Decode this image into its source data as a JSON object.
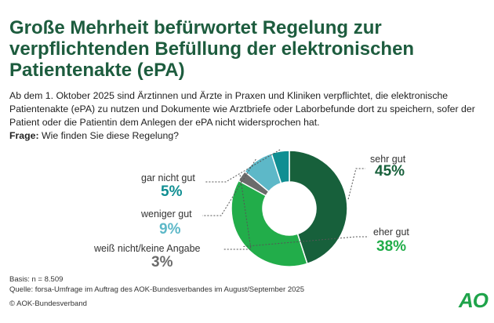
{
  "header": {
    "title": "Große Mehrheit befürwortet Regelung zur verpflichtenden Befüllung der elektronischen Patientenakte (ePA)",
    "intro": "Ab dem 1. Oktober 2025 sind Ärztinnen und Ärzte in Praxen und Kliniken verpflichtet, die elektronische Patientenakte (ePA) zu nutzen und Dokumente wie Arztbriefe oder Laborbefunde dort zu speichern, sofer der Patient oder die Patientin dem Anlegen der ePA nicht widersprochen hat.",
    "question_label": "Frage:",
    "question_text": "Wie finden Sie diese Regelung?"
  },
  "chart_data": {
    "type": "pie",
    "donut": true,
    "slices": [
      {
        "label": "sehr gut",
        "value": 45,
        "display": "45%",
        "color": "#17603b",
        "label_color": "#17603b"
      },
      {
        "label": "eher gut",
        "value": 38,
        "display": "38%",
        "color": "#22ad4a",
        "label_color": "#22ad4a"
      },
      {
        "label": "weiß nicht/keine Angabe",
        "value": 3,
        "display": "3%",
        "color": "#6b6b6b",
        "label_color": "#6b6b6b"
      },
      {
        "label": "weniger gut",
        "value": 9,
        "display": "9%",
        "color": "#5db8c8",
        "label_color": "#5db8c8"
      },
      {
        "label": "gar nicht gut",
        "value": 5,
        "display": "5%",
        "color": "#0f8e92",
        "label_color": "#0f8e92"
      }
    ]
  },
  "footer": {
    "basis": "Basis: n = 8.509",
    "source": "Quelle: forsa-Umfrage im Auftrag des AOK-Bundesverbandes im August/September 2025",
    "copyright": "© AOK-Bundesverband",
    "logo_text": "AO"
  }
}
